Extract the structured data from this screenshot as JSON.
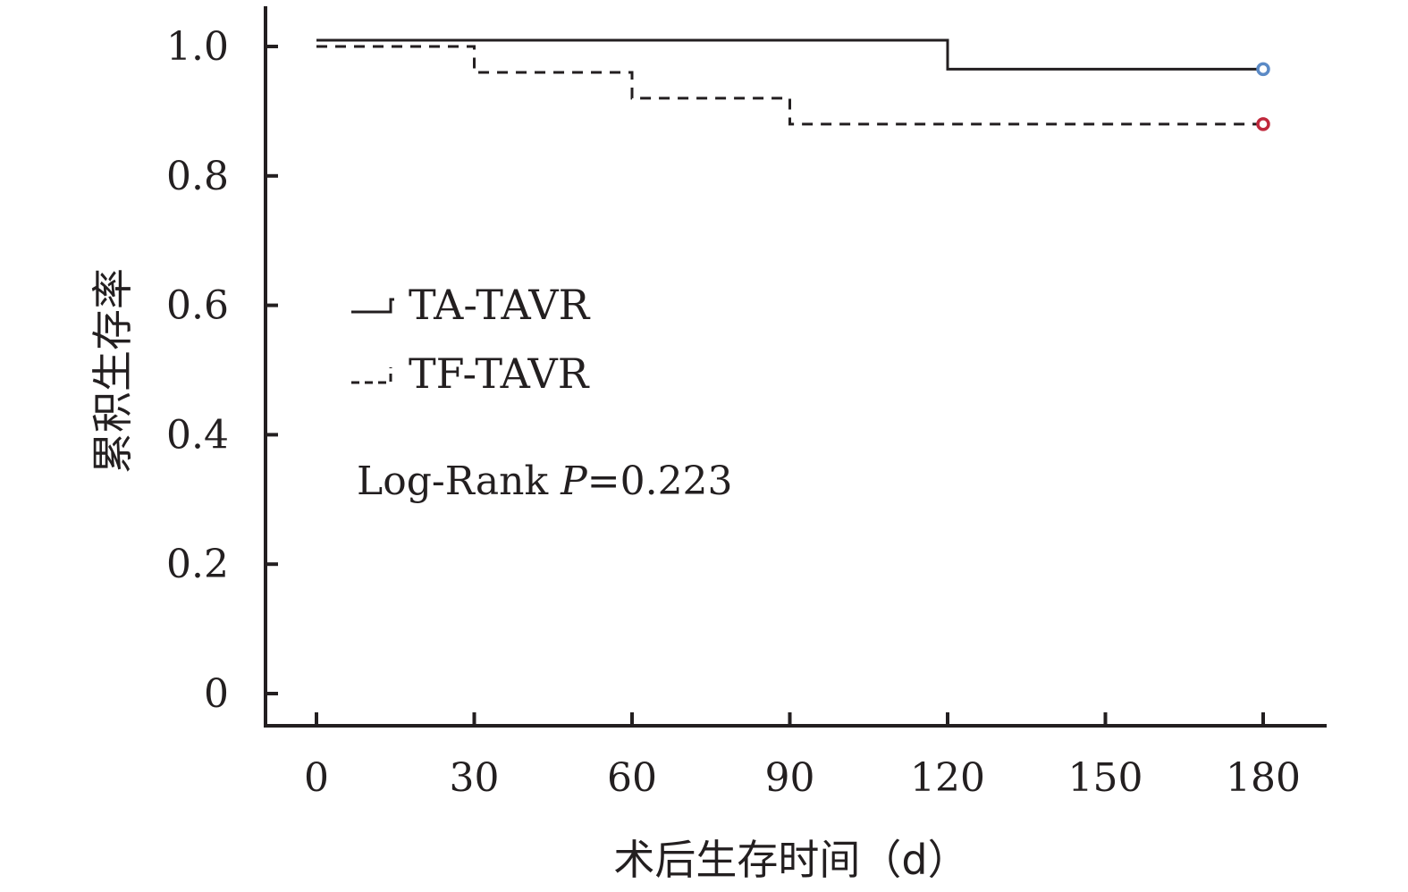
{
  "chart_data": {
    "type": "line",
    "title": "",
    "xlabel": "术后生存时间（d）",
    "ylabel": "累积生存率",
    "xlim": [
      0,
      180
    ],
    "ylim": [
      0,
      1.0
    ],
    "x_ticks": [
      "0",
      "30",
      "60",
      "90",
      "120",
      "150",
      "180"
    ],
    "y_ticks": [
      "0",
      "0.2",
      "0.4",
      "0.6",
      "0.8",
      "1.0"
    ],
    "grid": false,
    "legend_position": "center-left",
    "series": [
      {
        "name": "TA-TAVR",
        "style": "solid",
        "color": "#231f20",
        "censor_color": "#5b8ac6",
        "x": [
          0,
          120,
          180
        ],
        "y": [
          1.0,
          0.965,
          0.965
        ]
      },
      {
        "name": "TF-TAVR",
        "style": "dashed",
        "color": "#231f20",
        "censor_color": "#c0283c",
        "x": [
          0,
          30,
          60,
          90,
          180
        ],
        "y": [
          1.0,
          0.96,
          0.92,
          0.88,
          0.88
        ]
      }
    ],
    "annotation": {
      "prefix": "Log-Rank ",
      "p_symbol": "P",
      "suffix": "=0.223"
    }
  }
}
